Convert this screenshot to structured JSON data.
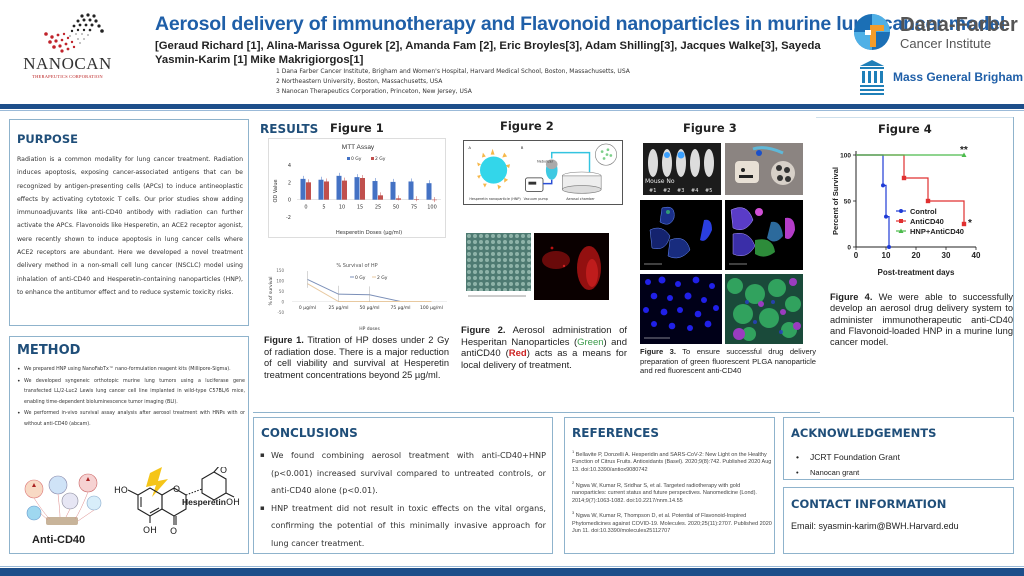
{
  "header": {
    "title": "Aerosol delivery of immunotherapy and Flavonoid nanoparticles in murine lung cancer model",
    "authors": "[Geraud Richard [1], Alina-Marissa Ogurek [2], Amanda Fam [2], Eric Broyles[3], Adam Shilling[3], Jacques Walke[3], Sayeda Yasmin-Karim [1] Mike Makrigiorgos[1]",
    "affiliations": [
      "1 Dana Farber Cancer Institute, Brigham and Women's Hospital, Harvard Medical School, Boston, Massachusetts, USA",
      "2 Northeastern University, Boston, Massachusetts, USA",
      "3 Nanocan Therapeutics Corporation, Princeton, New Jersey, USA"
    ],
    "logos": {
      "nanocan": {
        "name": "NANOCAN",
        "sub": "THERAPEUTICS CORPORATION"
      },
      "dfci": {
        "name": "Dana-Farber",
        "sub": "Cancer Institute"
      },
      "mgb": {
        "name": "Mass General Brigham"
      }
    }
  },
  "purpose": {
    "heading": "PURPOSE",
    "text": "Radiation is a common modality for lung cancer treatment. Radiation induces apoptosis, exposing cancer-associated antigens that can be recognized by antigen-presenting cells (APCs) to induce antineoplastic effects by activating cytotoxic T cells. Our prior studies show adding immunoadjuvants like anti-CD40 antibody with radiation can further activate the APCs. Flavonoids like Hesperetin, an ACE2 receptor agonist, were recently shown to induce apoptosis in lung cancer cells where ACE2 receptors are abundant. Here we developed a novel treatment delivery method in a non-small cell lung cancer (NSCLC) model using inhalation of anti-CD40 and Hesperetin-containing nanoparticles (HNP), to enhance the antitumor effect and to reduce systemic toxicity risks."
  },
  "method": {
    "heading": "METHOD",
    "items": [
      "We prepared HNP using NanoFabTx™ nano-formulation reagent kits (Millipore-Sigma).",
      "We developed syngeneic orthotopic murine lung tumors using a luciferase gene transfected LL/2-Luc2 Lewis lung cancer cell line implanted in wild-type C57BL/6 mice, enabling time-dependent bioluminescence tumor imaging (BLI).",
      "We performed in-vivo survival assay analysis after aerosol treatment with HNPs with or without anti-CD40 (abcam)."
    ],
    "anti_cd40_label": "Anti-CD40",
    "hesperetin_label": "Hesperetin",
    "chem": {
      "ho": "HO",
      "oh1": "OH",
      "oh2": "OH",
      "o": "O"
    }
  },
  "results": {
    "heading": "RESULTS",
    "fig1": {
      "heading": "Figure 1",
      "caption_bold": "Figure 1.",
      "caption": " Titration of HP doses under 2 Gy of radiation dose. There is a major reduction of cell viability and survival at Hesperetin treatment concentrations beyond 25 µg/ml."
    },
    "fig2": {
      "heading": "Figure 2",
      "caption_bold": "Figure 2.",
      "caption_a": " Aerosol administration of Hesperitan Nanoparticles (",
      "green": "Green",
      "caption_b": ") and antiCD40 (",
      "red": "Red",
      "caption_c": ") acts as a means for local delivery of treatment.",
      "diagram_labels": [
        "A",
        "B",
        "Core",
        "Antibody",
        "Hesperetin",
        "Nebulizer",
        "Hesperetin nanoparticle (HNP)",
        "Vacuum pump",
        "Aerosol chamber"
      ]
    },
    "fig3": {
      "heading": "Figure 3",
      "caption_bold": "Figure 3.",
      "caption": " To ensure successful drug delivery preparation of green fluorescent PLGA nanoparticle and red fluorescent anti-CD40",
      "mouse_label": "Mouse No",
      "mouse_nums": [
        "#1",
        "#2",
        "#3",
        "#4",
        "#5"
      ]
    },
    "fig4": {
      "heading": "Figure 4",
      "caption_bold": "Figure 4.",
      "caption": " We were able to successfully develop an aerosol drug delivery system to administer immunotherapeutic anti-CD40 and Flavonoid-loaded HNP in a murine lung cancer model."
    }
  },
  "conclusions": {
    "heading": "CONCLUSIONS",
    "items": [
      "We found combining aerosol treatment with anti-CD40+HNP (p<0.001) increased survival compared to untreated controls, or anti-CD40 alone (p<0.01).",
      "HNP treatment did not result in toxic effects on the vital organs, confirming the potential of this minimally invasive approach for lung cancer treatment."
    ]
  },
  "references": {
    "heading": "REFERENCES",
    "items": [
      {
        "n": "1",
        "text": "Bellavite P, Donzelli A. Hesperidin and SARS-CoV-2: New Light on the Healthy Function of Citrus Fruits. Antioxidants (Basel). 2020;9(8):742. Published 2020 Aug 13. doi:10.3390/antiox9080742"
      },
      {
        "n": "2",
        "text": "Ngwa W, Kumar R, Sridhar S, et al. Targeted radiotherapy with gold nanoparticles: current status and future perspectives. Nanomedicine (Lond). 2014;9(7):1063-1082. doi:10.2217/nnm.14.55"
      },
      {
        "n": "3",
        "text": "Ngwa W, Kumar R, Thompson D, et al. Potential of Flavonoid-Inspired Phytomedicines against COVID-19. Molecules. 2020;25(11):2707. Published 2020 Jun 11. doi:10.3390/molecules25112707"
      }
    ]
  },
  "acknowledgements": {
    "heading": "ACKNOWLEDGEMENTS",
    "items": [
      "JCRT Foundation Grant",
      "Nanocan grant"
    ]
  },
  "contact": {
    "heading": "CONTACT INFORMATION",
    "email": "Email: syasmin-karim@BWH.Harvard.edu"
  },
  "colors": {
    "title_blue": "#1f5fa8",
    "heading_navy": "#1f4e79",
    "rule_navy": "#1d4e8a",
    "border": "#8fb3cc",
    "bar_0gy": "#4472c4",
    "bar_2gy": "#c0504d",
    "control": "#1f3bd6",
    "anticd40": "#e03030",
    "hnp_anticd40": "#4cbb4c"
  },
  "chart_data": [
    {
      "type": "bar",
      "title": "MTT Assay",
      "xlabel": "Hesperetin Doses (µg/ml)",
      "ylabel": "OD Value",
      "categories": [
        "0",
        "5",
        "10",
        "15",
        "25",
        "50",
        "75",
        "100"
      ],
      "series": [
        {
          "name": "0 Gy",
          "values": [
            2.4,
            2.3,
            2.75,
            2.6,
            2.15,
            2.05,
            2.1,
            1.9
          ]
        },
        {
          "name": "2 Gy",
          "values": [
            2.0,
            2.1,
            2.2,
            2.5,
            0.5,
            0.15,
            0.05,
            -0.05
          ]
        }
      ],
      "yticks": [
        "-2",
        "0",
        "2",
        "4"
      ],
      "ylim": [
        -2,
        4
      ],
      "legend_position": "top"
    },
    {
      "type": "line",
      "title": "% Survival of HP",
      "xlabel": "HP doses",
      "ylabel": "% of survival",
      "categories": [
        "0 µg/ml",
        "25 µg/ml",
        "50 µg/ml",
        "75 µg/ml",
        "100 µg/ml"
      ],
      "series": [
        {
          "name": "0 Gy",
          "values": [
            105,
            35,
            32,
            0,
            0
          ]
        },
        {
          "name": "2 Gy",
          "values": [
            85,
            0,
            0,
            0,
            0
          ]
        }
      ],
      "yticks": [
        "-50",
        "0",
        "50",
        "100",
        "150"
      ],
      "ylim": [
        -50,
        150
      ],
      "legend_position": "top"
    },
    {
      "type": "line",
      "title": "Figure 4",
      "xlabel": "Post-treatment days",
      "ylabel": "Percent of Survival",
      "x_ticks": [
        "0",
        "10",
        "20",
        "30",
        "40"
      ],
      "yticks": [
        "0",
        "50",
        "100"
      ],
      "xlim": [
        0,
        40
      ],
      "ylim": [
        0,
        100
      ],
      "series": [
        {
          "name": "Control",
          "points": [
            [
              0,
              100
            ],
            [
              9,
              100
            ],
            [
              9,
              67
            ],
            [
              10,
              67
            ],
            [
              10,
              33
            ],
            [
              11,
              33
            ],
            [
              11,
              0
            ]
          ]
        },
        {
          "name": "AntiCD40",
          "points": [
            [
              0,
              100
            ],
            [
              16,
              100
            ],
            [
              16,
              75
            ],
            [
              24,
              75
            ],
            [
              24,
              50
            ],
            [
              36,
              50
            ],
            [
              36,
              25
            ]
          ],
          "annotation": "*"
        },
        {
          "name": "HNP+AntiCD40",
          "points": [
            [
              0,
              100
            ],
            [
              36,
              100
            ]
          ],
          "annotation": "**"
        }
      ],
      "legend_position": "inside-center"
    }
  ]
}
